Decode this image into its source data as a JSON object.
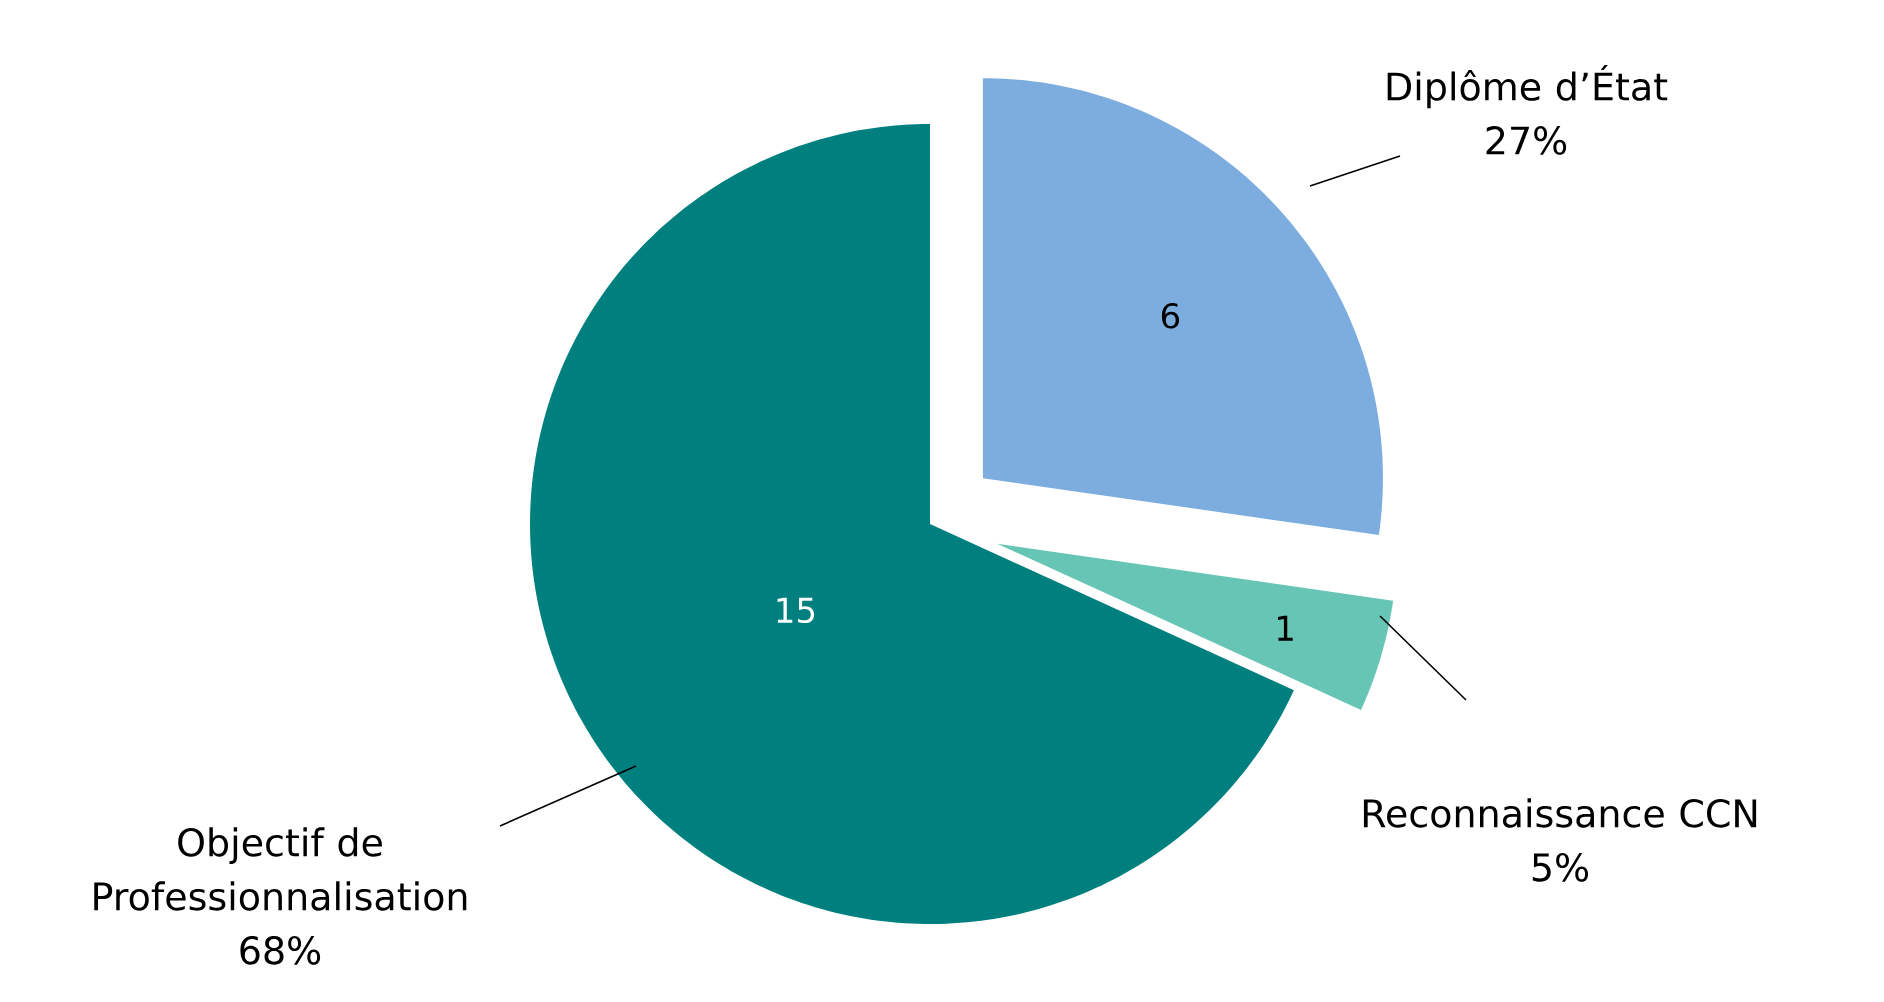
{
  "chart_data": {
    "type": "pie",
    "categories": [
      "Diplôme d’État",
      "Reconnaissance CCN",
      "Objectif de Professionnalisation"
    ],
    "values": [
      6,
      1,
      15
    ],
    "colors": [
      "#7dadde",
      "#66c5b5",
      "#007f7f"
    ],
    "data_labels": true,
    "annotations": [
      "27%",
      "5%",
      "68%"
    ],
    "legend": false
  }
}
